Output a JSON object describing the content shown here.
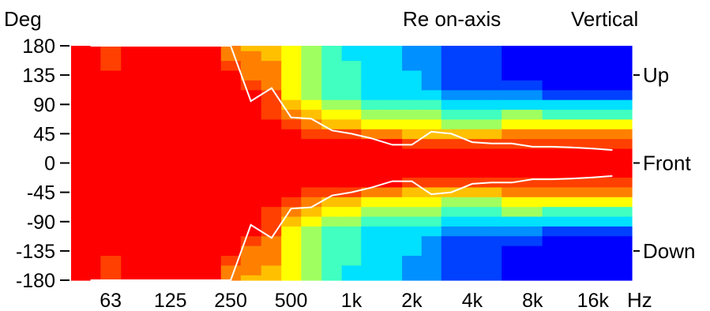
{
  "chart_data": {
    "type": "heatmap",
    "title": "Re on-axis",
    "orientation": "Vertical",
    "ylabel": "Deg",
    "xunit": "Hz",
    "xscale": "log",
    "xlim": [
      40,
      25000
    ],
    "ylim": [
      -180,
      180
    ],
    "yticks": [
      "180",
      "135",
      "90",
      "45",
      "0",
      "-45",
      "-90",
      "-135",
      "-180"
    ],
    "xticks": [
      {
        "label": "63",
        "hz": 63
      },
      {
        "label": "125",
        "hz": 125
      },
      {
        "label": "250",
        "hz": 250
      },
      {
        "label": "500",
        "hz": 500
      },
      {
        "label": "1k",
        "hz": 1000
      },
      {
        "label": "2k",
        "hz": 2000
      },
      {
        "label": "4k",
        "hz": 4000
      },
      {
        "label": "8k",
        "hz": 8000
      },
      {
        "label": "16k",
        "hz": 16000
      }
    ],
    "side_labels": [
      {
        "label": "Up",
        "deg": 135
      },
      {
        "label": "Front",
        "deg": 0
      },
      {
        "label": "Down",
        "deg": -135
      }
    ],
    "colors": [
      "#0000ff",
      "#0040ff",
      "#0090ff",
      "#00e0ff",
      "#40ffc0",
      "#a0ff60",
      "#ffff00",
      "#ffc000",
      "#ff8000",
      "#ff4000",
      "#ff0000"
    ],
    "frequencies": [
      50,
      63,
      80,
      100,
      125,
      160,
      200,
      250,
      315,
      400,
      500,
      630,
      800,
      1000,
      1250,
      1600,
      2000,
      2500,
      3150,
      4000,
      5000,
      6300,
      8000,
      10000,
      12500,
      16000,
      20000
    ],
    "angles": [
      0,
      15,
      30,
      45,
      60,
      75,
      90,
      105,
      120,
      135,
      150,
      165,
      180
    ],
    "matrix": [
      [
        10,
        10,
        10,
        10,
        10,
        10,
        10,
        10,
        10,
        10,
        10,
        10,
        10
      ],
      [
        10,
        10,
        10,
        10,
        10,
        10,
        10,
        10,
        10,
        10,
        9,
        9,
        9
      ],
      [
        10,
        10,
        10,
        10,
        10,
        10,
        10,
        10,
        10,
        10,
        10,
        10,
        10
      ],
      [
        10,
        10,
        10,
        10,
        10,
        10,
        10,
        10,
        10,
        10,
        10,
        10,
        10
      ],
      [
        10,
        10,
        10,
        10,
        10,
        10,
        10,
        10,
        10,
        10,
        10,
        10,
        10
      ],
      [
        10,
        10,
        10,
        10,
        10,
        10,
        10,
        10,
        10,
        10,
        10,
        10,
        10
      ],
      [
        10,
        10,
        10,
        10,
        10,
        10,
        10,
        10,
        10,
        10,
        10,
        10,
        10
      ],
      [
        10,
        10,
        10,
        10,
        10,
        10,
        10,
        10,
        10,
        10,
        9,
        8,
        8
      ],
      [
        10,
        10,
        10,
        10,
        10,
        10,
        10,
        10,
        9,
        8,
        8,
        8,
        7
      ],
      [
        10,
        10,
        10,
        10,
        10,
        9,
        9,
        9,
        8,
        8,
        8,
        7,
        7
      ],
      [
        10,
        10,
        10,
        10,
        9,
        8,
        7,
        6,
        6,
        6,
        6,
        6,
        6
      ],
      [
        10,
        10,
        10,
        9,
        8,
        7,
        6,
        5,
        5,
        5,
        5,
        5,
        5
      ],
      [
        10,
        10,
        10,
        9,
        7,
        6,
        5,
        4,
        4,
        4,
        4,
        4,
        4
      ],
      [
        10,
        10,
        10,
        9,
        7,
        6,
        5,
        4,
        4,
        4,
        4,
        3,
        3
      ],
      [
        10,
        10,
        10,
        8,
        6,
        5,
        4,
        3,
        3,
        3,
        3,
        3,
        3
      ],
      [
        10,
        10,
        10,
        8,
        6,
        5,
        4,
        3,
        3,
        3,
        3,
        3,
        3
      ],
      [
        10,
        10,
        9,
        7,
        6,
        5,
        4,
        3,
        3,
        3,
        2,
        2,
        2
      ],
      [
        10,
        10,
        9,
        7,
        6,
        5,
        4,
        3,
        2,
        2,
        2,
        2,
        2
      ],
      [
        10,
        10,
        9,
        7,
        5,
        4,
        3,
        2,
        1,
        1,
        1,
        1,
        1
      ],
      [
        10,
        10,
        9,
        7,
        5,
        4,
        3,
        2,
        1,
        1,
        1,
        1,
        1
      ],
      [
        10,
        10,
        9,
        7,
        5,
        4,
        3,
        2,
        1,
        1,
        1,
        1,
        1
      ],
      [
        10,
        10,
        9,
        8,
        6,
        5,
        3,
        2,
        1,
        0,
        0,
        0,
        0
      ],
      [
        10,
        10,
        9,
        8,
        6,
        5,
        3,
        2,
        1,
        0,
        0,
        0,
        0
      ],
      [
        10,
        10,
        9,
        8,
        6,
        4,
        3,
        1,
        0,
        0,
        0,
        0,
        0
      ],
      [
        10,
        10,
        9,
        8,
        6,
        4,
        3,
        1,
        0,
        0,
        0,
        0,
        0
      ],
      [
        10,
        10,
        9,
        8,
        6,
        4,
        3,
        1,
        0,
        0,
        0,
        0,
        0
      ],
      [
        10,
        10,
        9,
        8,
        6,
        4,
        3,
        1,
        0,
        0,
        0,
        0,
        0
      ]
    ],
    "contour_deg": [
      180,
      180,
      180,
      180,
      180,
      180,
      180,
      180,
      95,
      115,
      70,
      68,
      50,
      45,
      38,
      28,
      28,
      48,
      45,
      32,
      30,
      30,
      25,
      25,
      24,
      22,
      20
    ]
  }
}
